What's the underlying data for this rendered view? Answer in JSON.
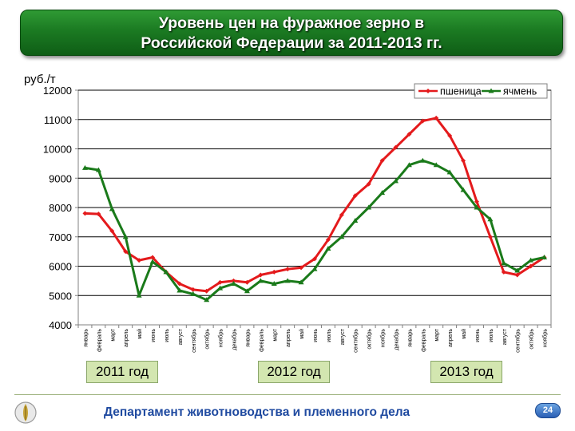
{
  "slide": {
    "title_line1": "Уровень цен на фуражное зерно в",
    "title_line2": "Российской Федерации за 2011-2013 гг.",
    "years": [
      "2011 год",
      "2012 год",
      "2013 год"
    ],
    "footer": "Департамент животноводства и племенного дела",
    "page_number": "24"
  },
  "chart_data": {
    "type": "line",
    "ylabel": "руб./т",
    "ylim": [
      4000,
      12000
    ],
    "yticks": [
      4000,
      5000,
      6000,
      7000,
      8000,
      9000,
      10000,
      11000,
      12000
    ],
    "grid": true,
    "legend_position": "top-right",
    "categories": [
      "январь",
      "февраль",
      "март",
      "апрель",
      "май",
      "июнь",
      "июль",
      "август",
      "сентябрь",
      "октябрь",
      "ноябрь",
      "декабрь",
      "январь",
      "февраль",
      "март",
      "апрель",
      "май",
      "июнь",
      "июль",
      "август",
      "сентябрь",
      "октябрь",
      "ноябрь",
      "декабрь",
      "январь",
      "февраль",
      "март",
      "апрель",
      "май",
      "июнь",
      "июль",
      "август",
      "сентябрь",
      "октябрь",
      "ноябрь"
    ],
    "series": [
      {
        "name": "пшеница",
        "color": "#e41a1c",
        "marker": "diamond",
        "values": [
          7800,
          7780,
          7200,
          6500,
          6200,
          6300,
          5800,
          5400,
          5200,
          5150,
          5450,
          5500,
          5450,
          5700,
          5800,
          5900,
          5950,
          6250,
          6900,
          7750,
          8400,
          8800,
          9600,
          10050,
          10500,
          10950,
          11050,
          10450,
          9600,
          8200,
          7000,
          5800,
          5700,
          6000,
          6300
        ]
      },
      {
        "name": "ячмень",
        "color": "#1a7a1a",
        "marker": "triangle",
        "values": [
          9350,
          9280,
          7950,
          7000,
          5000,
          6150,
          5800,
          5170,
          5050,
          4850,
          5250,
          5400,
          5150,
          5500,
          5400,
          5500,
          5450,
          5900,
          6600,
          7000,
          7550,
          8000,
          8500,
          8900,
          9450,
          9600,
          9450,
          9200,
          8600,
          8000,
          7600,
          6100,
          5850,
          6200,
          6300
        ]
      }
    ]
  }
}
